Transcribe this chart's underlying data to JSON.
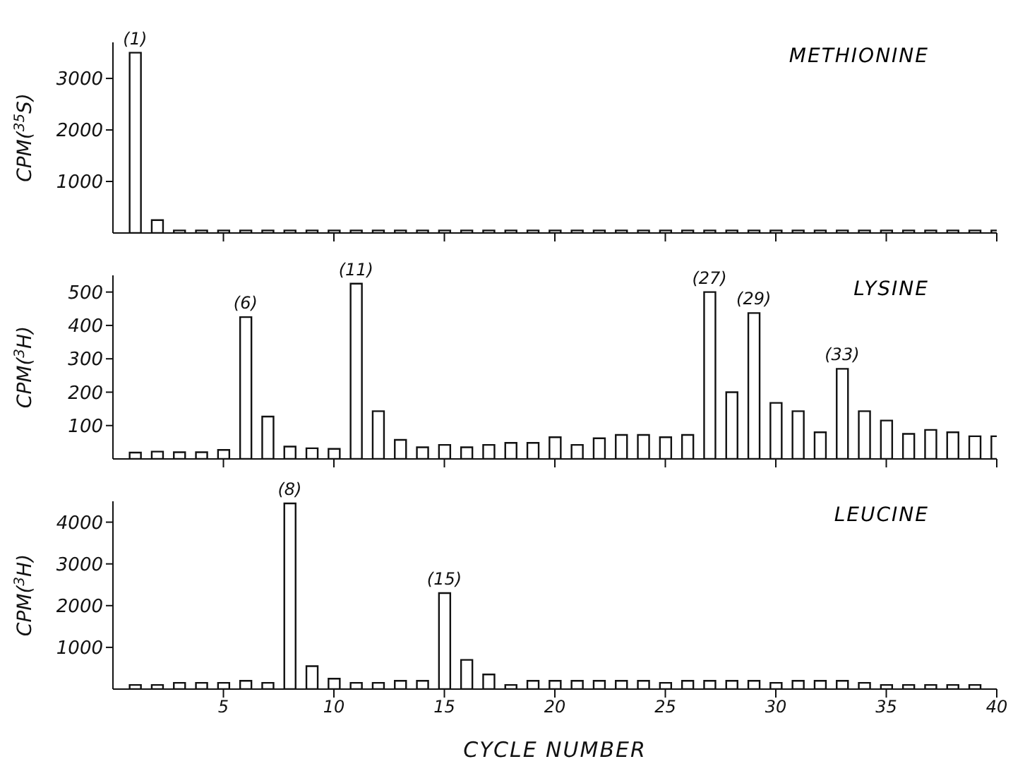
{
  "chart_data": [
    {
      "type": "bar",
      "title": "METHIONINE",
      "ylabel": "CPM($^{35}$S)",
      "color": "#ffffff",
      "x": [
        1,
        2,
        3,
        4,
        5,
        6,
        7,
        8,
        9,
        10,
        11,
        12,
        13,
        14,
        15,
        16,
        17,
        18,
        19,
        20,
        21,
        22,
        23,
        24,
        25,
        26,
        27,
        28,
        29,
        30,
        31,
        32,
        33,
        34,
        35,
        36,
        37,
        38,
        39,
        40
      ],
      "values": [
        3500,
        250,
        50,
        50,
        50,
        50,
        50,
        50,
        50,
        50,
        50,
        50,
        50,
        50,
        50,
        50,
        50,
        50,
        50,
        50,
        50,
        50,
        50,
        50,
        50,
        50,
        50,
        50,
        50,
        50,
        50,
        50,
        50,
        50,
        50,
        50,
        50,
        50,
        50,
        50
      ],
      "xlim": [
        0,
        40
      ],
      "xticks": [
        5,
        10,
        15,
        20,
        25,
        30,
        35,
        40
      ],
      "ylim": [
        0,
        3700
      ],
      "yticks": [
        1000,
        2000,
        3000
      ],
      "tick_labels": "y",
      "annotations": [
        {
          "text": "(1)",
          "x": 1,
          "y": 3500
        }
      ]
    },
    {
      "type": "bar",
      "title": "LYSINE",
      "ylabel": "CPM($^{3}$H)",
      "color": "#ffffff",
      "x": [
        1,
        2,
        3,
        4,
        5,
        6,
        7,
        8,
        9,
        10,
        11,
        12,
        13,
        14,
        15,
        16,
        17,
        18,
        19,
        20,
        21,
        22,
        23,
        24,
        25,
        26,
        27,
        28,
        29,
        30,
        31,
        32,
        33,
        34,
        35,
        36,
        37,
        38,
        39,
        40
      ],
      "values": [
        19,
        22,
        20,
        20,
        27,
        425,
        127,
        37,
        32,
        30,
        525,
        143,
        57,
        35,
        42,
        35,
        42,
        48,
        48,
        65,
        42,
        62,
        72,
        72,
        65,
        72,
        500,
        200,
        437,
        168,
        143,
        80,
        270,
        143,
        115,
        75,
        87,
        80,
        68,
        68
      ],
      "xlim": [
        0,
        40
      ],
      "xticks": [
        5,
        10,
        15,
        20,
        25,
        30,
        35,
        40
      ],
      "ylim": [
        0,
        550
      ],
      "yticks": [
        100,
        200,
        300,
        400,
        500
      ],
      "tick_labels": "y",
      "annotations": [
        {
          "text": "(6)",
          "x": 6,
          "y": 425
        },
        {
          "text": "(11)",
          "x": 11,
          "y": 525
        },
        {
          "text": "(27)",
          "x": 27,
          "y": 500
        },
        {
          "text": "(29)",
          "x": 29,
          "y": 437
        },
        {
          "text": "(33)",
          "x": 33,
          "y": 270
        }
      ]
    },
    {
      "type": "bar",
      "title": "LEUCINE",
      "ylabel": "CPM($^{3}$H)",
      "xlabel": "CYCLE NUMBER",
      "color": "#ffffff",
      "x": [
        1,
        2,
        3,
        4,
        5,
        6,
        7,
        8,
        9,
        10,
        11,
        12,
        13,
        14,
        15,
        16,
        17,
        18,
        19,
        20,
        21,
        22,
        23,
        24,
        25,
        26,
        27,
        28,
        29,
        30,
        31,
        32,
        33,
        34,
        35,
        36,
        37,
        38,
        39
      ],
      "values": [
        100,
        100,
        150,
        150,
        150,
        200,
        150,
        4450,
        550,
        250,
        150,
        150,
        200,
        200,
        2300,
        700,
        350,
        100,
        200,
        200,
        200,
        200,
        200,
        200,
        150,
        200,
        200,
        200,
        200,
        150,
        200,
        200,
        200,
        150,
        100,
        100,
        100,
        100,
        100
      ],
      "xlim": [
        0,
        40
      ],
      "xticks": [
        5,
        10,
        15,
        20,
        25,
        30,
        35,
        40
      ],
      "ylim": [
        0,
        4500
      ],
      "yticks": [
        1000,
        2000,
        3000,
        4000
      ],
      "annotations": [
        {
          "text": "(8)",
          "x": 8,
          "y": 4450
        },
        {
          "text": "(15)",
          "x": 15,
          "y": 2300
        }
      ]
    }
  ]
}
